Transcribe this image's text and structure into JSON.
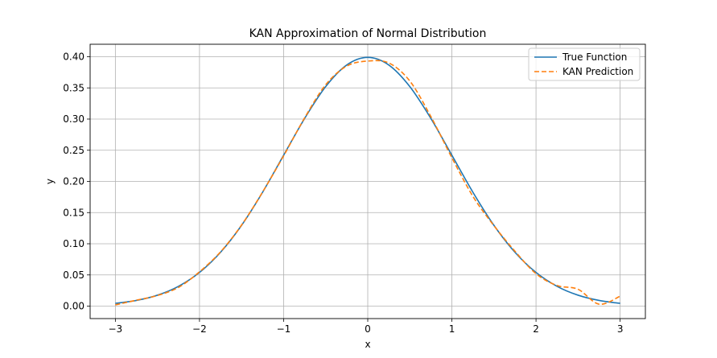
{
  "chart_data": {
    "type": "line",
    "title": "KAN Approximation of Normal Distribution",
    "xlabel": "x",
    "ylabel": "y",
    "xlim": [
      -3.3,
      3.3
    ],
    "ylim": [
      -0.02,
      0.42
    ],
    "grid": true,
    "legend_position": "top-right",
    "xticks": [
      -3,
      -2,
      -1,
      0,
      1,
      2,
      3
    ],
    "xtick_labels": [
      "−3",
      "−2",
      "−1",
      "0",
      "1",
      "2",
      "3"
    ],
    "yticks": [
      0.0,
      0.05,
      0.1,
      0.15,
      0.2,
      0.25,
      0.3,
      0.35,
      0.4
    ],
    "ytick_labels": [
      "0.00",
      "0.05",
      "0.10",
      "0.15",
      "0.20",
      "0.25",
      "0.30",
      "0.35",
      "0.40"
    ],
    "x": [
      -3.0,
      -2.75,
      -2.5,
      -2.25,
      -2.0,
      -1.75,
      -1.5,
      -1.25,
      -1.0,
      -0.75,
      -0.5,
      -0.25,
      0.0,
      0.25,
      0.5,
      0.75,
      1.0,
      1.25,
      1.5,
      1.75,
      2.0,
      2.25,
      2.5,
      2.75,
      3.0
    ],
    "series": [
      {
        "name": "True Function",
        "color": "#1f77b4",
        "dash": "solid",
        "values": [
          0.0044,
          0.0091,
          0.0175,
          0.0317,
          0.054,
          0.0863,
          0.1295,
          0.1826,
          0.242,
          0.3011,
          0.3521,
          0.3867,
          0.3989,
          0.3867,
          0.3521,
          0.3011,
          0.242,
          0.1826,
          0.1295,
          0.0863,
          0.054,
          0.0317,
          0.0175,
          0.0091,
          0.0044
        ]
      },
      {
        "name": "KAN Prediction",
        "color": "#ff7f0e",
        "dash": "dashed",
        "values": [
          0.002,
          0.0095,
          0.017,
          0.03,
          0.055,
          0.087,
          0.13,
          0.183,
          0.241,
          0.302,
          0.355,
          0.385,
          0.393,
          0.39,
          0.361,
          0.304,
          0.238,
          0.176,
          0.129,
          0.088,
          0.052,
          0.033,
          0.027,
          0.003,
          0.016
        ]
      }
    ]
  }
}
